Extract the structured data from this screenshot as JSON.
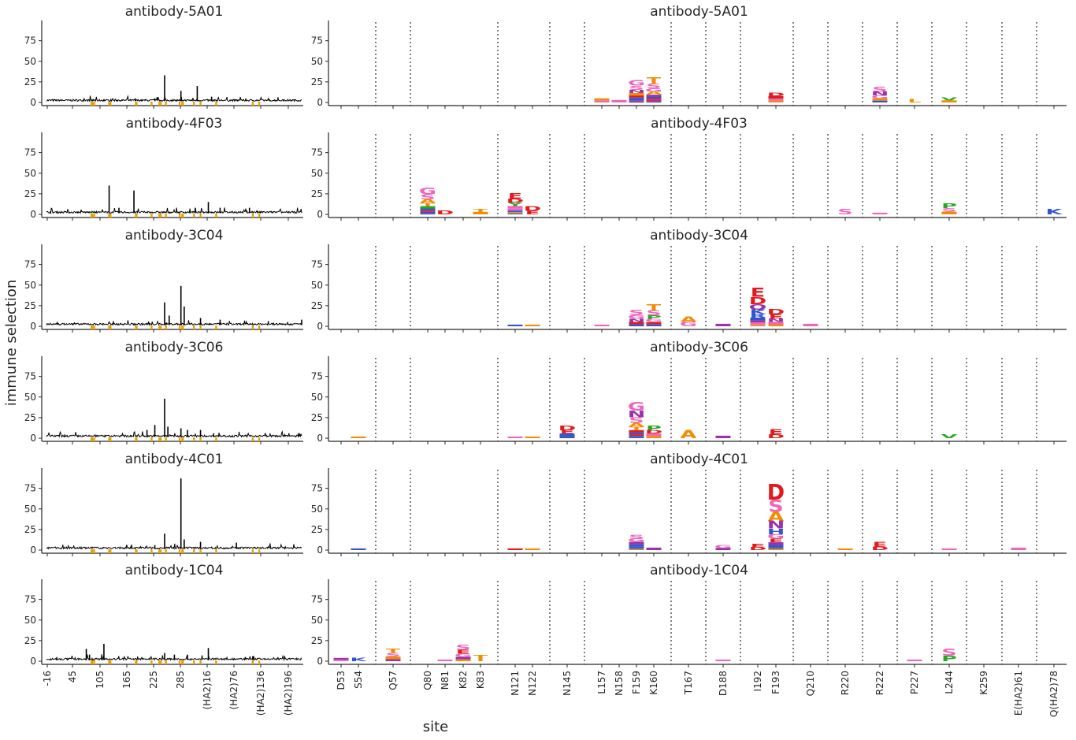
{
  "figure": {
    "ylabel": "immune selection",
    "xlabel": "site"
  },
  "chart_data": {
    "type": "line",
    "y_ticks": [
      0,
      25,
      50,
      75
    ],
    "ylim": [
      -3,
      93
    ],
    "left_x_tick_labels": [
      "-16",
      "45",
      "105",
      "165",
      "225",
      "285",
      "(HA2)16",
      "(HA2)76",
      "(HA2)136",
      "(HA2)196"
    ],
    "right_site_labels": [
      "D53",
      "S54",
      "Q57",
      "Q80",
      "N81",
      "K82",
      "K83",
      "N121",
      "N122",
      "N145",
      "L157",
      "N158",
      "F159",
      "K160",
      "T167",
      "D188",
      "I192",
      "F193",
      "Q210",
      "R220",
      "R222",
      "P227",
      "L244",
      "K259",
      "E(HA2)61",
      "Q(HA2)78"
    ],
    "colors": {
      "line": "#000000",
      "marker": "#e8a000",
      "acidic": "#e31a1c",
      "basic": "#3355cc",
      "polar": "#ee66bb",
      "nonpolar": "#f28c00",
      "aromatic": "#22aa22",
      "amide": "#9933aa"
    },
    "panels": [
      {
        "title": "antibody-5A01",
        "left_peaks": [
          [
            165,
            33
          ],
          [
            190,
            14
          ],
          [
            215,
            20
          ],
          [
            237,
            7
          ],
          [
            120,
            5
          ],
          [
            150,
            5
          ],
          [
            72,
            4
          ]
        ],
        "logos": [
          {
            "site": "L157",
            "h": 5,
            "letters": [
              "A",
              "S"
            ]
          },
          {
            "site": "N158",
            "h": 3,
            "letters": [
              "S"
            ]
          },
          {
            "site": "F159",
            "h": 27,
            "letters": [
              "G",
              "S",
              "N",
              "A",
              "E",
              "R",
              "K",
              "H",
              "D",
              "Q"
            ]
          },
          {
            "site": "K160",
            "h": 30,
            "letters": [
              "T",
              "S",
              "G",
              "A",
              "N",
              "R",
              "E",
              "Q",
              "D",
              "H"
            ]
          },
          {
            "site": "F193",
            "h": 12,
            "letters": [
              "D",
              "E",
              "S",
              "A"
            ]
          },
          {
            "site": "R222",
            "h": 19,
            "letters": [
              "S",
              "N",
              "G",
              "A",
              "K"
            ]
          },
          {
            "site": "P227",
            "h": 4,
            "letters": [
              "L"
            ]
          },
          {
            "site": "L244",
            "h": 6,
            "letters": [
              "V",
              "I"
            ]
          }
        ]
      },
      {
        "title": "antibody-4F03",
        "left_peaks": [
          [
            80,
            35
          ],
          [
            118,
            29
          ],
          [
            232,
            15
          ],
          [
            95,
            8
          ],
          [
            212,
            8
          ],
          [
            250,
            8
          ],
          [
            295,
            8
          ]
        ],
        "logos": [
          {
            "site": "Q80",
            "h": 32,
            "letters": [
              "G",
              "S",
              "A",
              "T",
              "Y",
              "R",
              "E",
              "H",
              "N",
              "K"
            ]
          },
          {
            "site": "N81",
            "h": 5,
            "letters": [
              "D"
            ]
          },
          {
            "site": "K83",
            "h": 7,
            "letters": [
              "T",
              "I"
            ]
          },
          {
            "site": "N121",
            "h": 26,
            "letters": [
              "E",
              "D",
              "Y",
              "G",
              "S",
              "K",
              "A",
              "H"
            ]
          },
          {
            "site": "N122",
            "h": 10,
            "letters": [
              "D",
              "E"
            ]
          },
          {
            "site": "R220",
            "h": 7,
            "letters": [
              "S"
            ]
          },
          {
            "site": "R222",
            "h": 2,
            "letters": [
              "G"
            ]
          },
          {
            "site": "L244",
            "h": 13,
            "letters": [
              "P",
              "S",
              "A"
            ]
          },
          {
            "site": "Q(HA2)78",
            "h": 7,
            "letters": [
              "K"
            ]
          }
        ]
      },
      {
        "title": "antibody-3C04",
        "left_peaks": [
          [
            190,
            49
          ],
          [
            165,
            29
          ],
          [
            172,
            13
          ],
          [
            220,
            10
          ],
          [
            250,
            8
          ],
          [
            375,
            8
          ],
          [
            195,
            24
          ]
        ],
        "logos": [
          {
            "site": "N121",
            "h": 2,
            "letters": [
              "K"
            ]
          },
          {
            "site": "N122",
            "h": 2,
            "letters": [
              "T"
            ]
          },
          {
            "site": "L157",
            "h": 2,
            "letters": [
              "S"
            ]
          },
          {
            "site": "F159",
            "h": 20,
            "letters": [
              "S",
              "G",
              "N",
              "E",
              "K"
            ]
          },
          {
            "site": "K160",
            "h": 27,
            "letters": [
              "T",
              "S",
              "P",
              "G",
              "D",
              "R"
            ]
          },
          {
            "site": "T167",
            "h": 12,
            "letters": [
              "A",
              "G"
            ]
          },
          {
            "site": "D188",
            "h": 3,
            "letters": [
              "N"
            ]
          },
          {
            "site": "I192",
            "h": 47,
            "letters": [
              "E",
              "D",
              "Q",
              "K",
              "R",
              "H",
              "N",
              "S",
              "A",
              "G"
            ]
          },
          {
            "site": "F193",
            "h": 21,
            "letters": [
              "D",
              "E",
              "N",
              "S",
              "A"
            ]
          },
          {
            "site": "Q210",
            "h": 3,
            "letters": [
              "S"
            ]
          }
        ]
      },
      {
        "title": "antibody-3C06",
        "left_peaks": [
          [
            165,
            48
          ],
          [
            150,
            16
          ],
          [
            170,
            14
          ],
          [
            138,
            10
          ],
          [
            190,
            12
          ],
          [
            200,
            10
          ],
          [
            220,
            10
          ],
          [
            240,
            6
          ],
          [
            370,
            6
          ]
        ],
        "logos": [
          {
            "site": "S54",
            "h": 2,
            "letters": [
              "A"
            ]
          },
          {
            "site": "N121",
            "h": 2,
            "letters": [
              "S"
            ]
          },
          {
            "site": "N122",
            "h": 2,
            "letters": [
              "T"
            ]
          },
          {
            "site": "N145",
            "h": 15,
            "letters": [
              "D",
              "E",
              "K",
              "H"
            ]
          },
          {
            "site": "F159",
            "h": 44,
            "letters": [
              "G",
              "N",
              "S",
              "A",
              "T",
              "E",
              "R",
              "D",
              "H",
              "K"
            ]
          },
          {
            "site": "K160",
            "h": 15,
            "letters": [
              "P",
              "D",
              "S",
              "T"
            ]
          },
          {
            "site": "T167",
            "h": 10,
            "letters": [
              "A"
            ]
          },
          {
            "site": "D188",
            "h": 3,
            "letters": [
              "N"
            ]
          },
          {
            "site": "F193",
            "h": 11,
            "letters": [
              "E",
              "D"
            ]
          },
          {
            "site": "L244",
            "h": 5,
            "letters": [
              "V"
            ]
          }
        ]
      },
      {
        "title": "antibody-4C01",
        "left_peaks": [
          [
            190,
            87
          ],
          [
            165,
            20
          ],
          [
            195,
            13
          ],
          [
            220,
            10
          ],
          [
            275,
            9
          ],
          [
            150,
            6
          ]
        ],
        "logos": [
          {
            "site": "S54",
            "h": 2,
            "letters": [
              "R"
            ]
          },
          {
            "site": "N121",
            "h": 2,
            "letters": [
              "D"
            ]
          },
          {
            "site": "N122",
            "h": 2,
            "letters": [
              "T"
            ]
          },
          {
            "site": "F159",
            "h": 19,
            "letters": [
              "S",
              "G",
              "N",
              "R",
              "K",
              "H",
              "A"
            ]
          },
          {
            "site": "K160",
            "h": 3,
            "letters": [
              "Q"
            ]
          },
          {
            "site": "D188",
            "h": 6,
            "letters": [
              "G",
              "N"
            ]
          },
          {
            "site": "I192",
            "h": 8,
            "letters": [
              "E",
              "D"
            ]
          },
          {
            "site": "F193",
            "h": 80,
            "letters": [
              "D",
              "S",
              "A",
              "N",
              "H",
              "G",
              "E",
              "Q",
              "R",
              "K",
              "T"
            ]
          },
          {
            "site": "R220",
            "h": 2,
            "letters": [
              "T"
            ]
          },
          {
            "site": "R222",
            "h": 10,
            "letters": [
              "E",
              "D"
            ]
          },
          {
            "site": "L244",
            "h": 2,
            "letters": [
              "S"
            ]
          },
          {
            "site": "E(HA2)61",
            "h": 3,
            "letters": [
              "G"
            ]
          }
        ]
      },
      {
        "title": "antibody-1C04",
        "left_peaks": [
          [
            45,
            15
          ],
          [
            72,
            21
          ],
          [
            50,
            8
          ],
          [
            232,
            16
          ],
          [
            165,
            10
          ],
          [
            180,
            8
          ],
          [
            200,
            8
          ],
          [
            300,
            6
          ]
        ],
        "logos": [
          {
            "site": "D53",
            "h": 4,
            "letters": [
              "N",
              "G"
            ]
          },
          {
            "site": "S54",
            "h": 4,
            "letters": [
              "K"
            ]
          },
          {
            "site": "Q57",
            "h": 15,
            "letters": [
              "T",
              "S",
              "A",
              "N"
            ]
          },
          {
            "site": "N81",
            "h": 2,
            "letters": [
              "S"
            ]
          },
          {
            "site": "K82",
            "h": 20,
            "letters": [
              "S",
              "E",
              "G",
              "N",
              "A"
            ]
          },
          {
            "site": "K83",
            "h": 8,
            "letters": [
              "T",
              "I"
            ]
          },
          {
            "site": "D188",
            "h": 2,
            "letters": [
              "S"
            ]
          },
          {
            "site": "P227",
            "h": 2,
            "letters": [
              "S"
            ]
          },
          {
            "site": "L244",
            "h": 15,
            "letters": [
              "S",
              "P"
            ]
          }
        ]
      }
    ]
  }
}
